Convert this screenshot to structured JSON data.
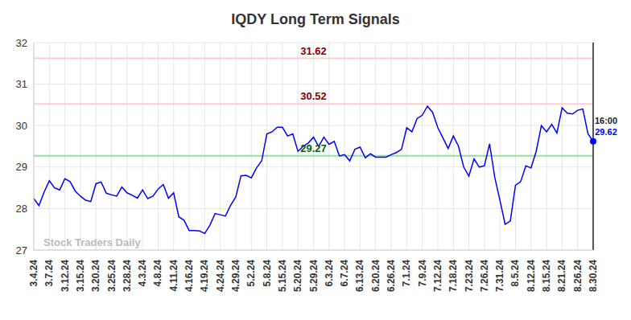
{
  "chart_data": {
    "type": "line",
    "title": "IQDY Long Term Signals",
    "watermark": "Stock Traders Daily",
    "categories": [
      "3.4.24",
      null,
      null,
      "3.7.24",
      null,
      null,
      "3.12.24",
      null,
      null,
      "3.15.24",
      null,
      null,
      "3.20.24",
      null,
      null,
      "3.25.24",
      null,
      null,
      "3.28.24",
      null,
      null,
      "4.3.24",
      null,
      null,
      "4.8.24",
      null,
      null,
      "4.11.24",
      null,
      null,
      "4.16.24",
      null,
      null,
      "4.19.24",
      null,
      null,
      "4.24.24",
      null,
      null,
      "4.29.24",
      null,
      null,
      "5.2.24",
      null,
      null,
      "5.8.24",
      null,
      null,
      "5.15.24",
      null,
      null,
      "5.20.24",
      null,
      null,
      "5.29.24",
      null,
      null,
      "6.3.24",
      null,
      null,
      "6.7.24",
      null,
      null,
      "6.13.24",
      null,
      null,
      "6.20.24",
      null,
      null,
      "6.26.24",
      null,
      null,
      "7.1.24",
      null,
      null,
      "7.9.24",
      null,
      null,
      "7.12.24",
      null,
      null,
      "7.18.24",
      null,
      null,
      "7.23.24",
      null,
      null,
      "7.26.24",
      null,
      null,
      "7.31.24",
      null,
      null,
      "8.5.24",
      null,
      null,
      "8.12.24",
      null,
      null,
      "8.15.24",
      null,
      null,
      "8.21.24",
      null,
      null,
      "8.26.24",
      null,
      null,
      "8.30.24"
    ],
    "values": [
      28.24,
      28.07,
      28.4,
      28.67,
      28.5,
      28.45,
      28.72,
      28.65,
      28.42,
      28.3,
      28.2,
      28.17,
      28.6,
      28.64,
      28.37,
      28.33,
      28.3,
      28.52,
      28.38,
      28.32,
      28.25,
      28.45,
      28.24,
      28.3,
      28.47,
      28.58,
      28.25,
      28.38,
      27.8,
      27.72,
      27.47,
      27.47,
      27.46,
      27.4,
      27.6,
      27.88,
      27.85,
      27.82,
      28.08,
      28.28,
      28.79,
      28.8,
      28.74,
      28.98,
      29.15,
      29.8,
      29.85,
      29.96,
      29.96,
      29.75,
      29.8,
      29.38,
      29.5,
      29.58,
      29.72,
      29.5,
      29.72,
      29.55,
      29.62,
      29.27,
      29.3,
      29.15,
      29.43,
      29.48,
      29.22,
      29.32,
      29.24,
      29.24,
      29.24,
      29.3,
      29.35,
      29.43,
      29.95,
      29.85,
      30.17,
      30.25,
      30.47,
      30.32,
      29.95,
      29.7,
      29.45,
      29.75,
      29.5,
      29.0,
      28.78,
      29.2,
      29.0,
      29.03,
      29.56,
      28.75,
      28.2,
      27.62,
      27.7,
      28.56,
      28.65,
      29.03,
      28.98,
      29.38,
      30.0,
      29.85,
      30.03,
      29.82,
      30.43,
      30.3,
      30.28,
      30.37,
      30.4,
      29.8,
      29.62
    ],
    "color": "#0000ff",
    "ylim": [
      27,
      32
    ],
    "yticks": [
      27,
      28,
      29,
      30,
      31,
      32
    ],
    "grid": true,
    "reference_lines": [
      {
        "value": 31.62,
        "color": "#ffcccc"
      },
      {
        "value": 30.52,
        "color": "#ffcccc"
      },
      {
        "value": 29.27,
        "color": "#99dd99"
      }
    ],
    "annotations": [
      {
        "text": "16:00"
      }
    ]
  }
}
